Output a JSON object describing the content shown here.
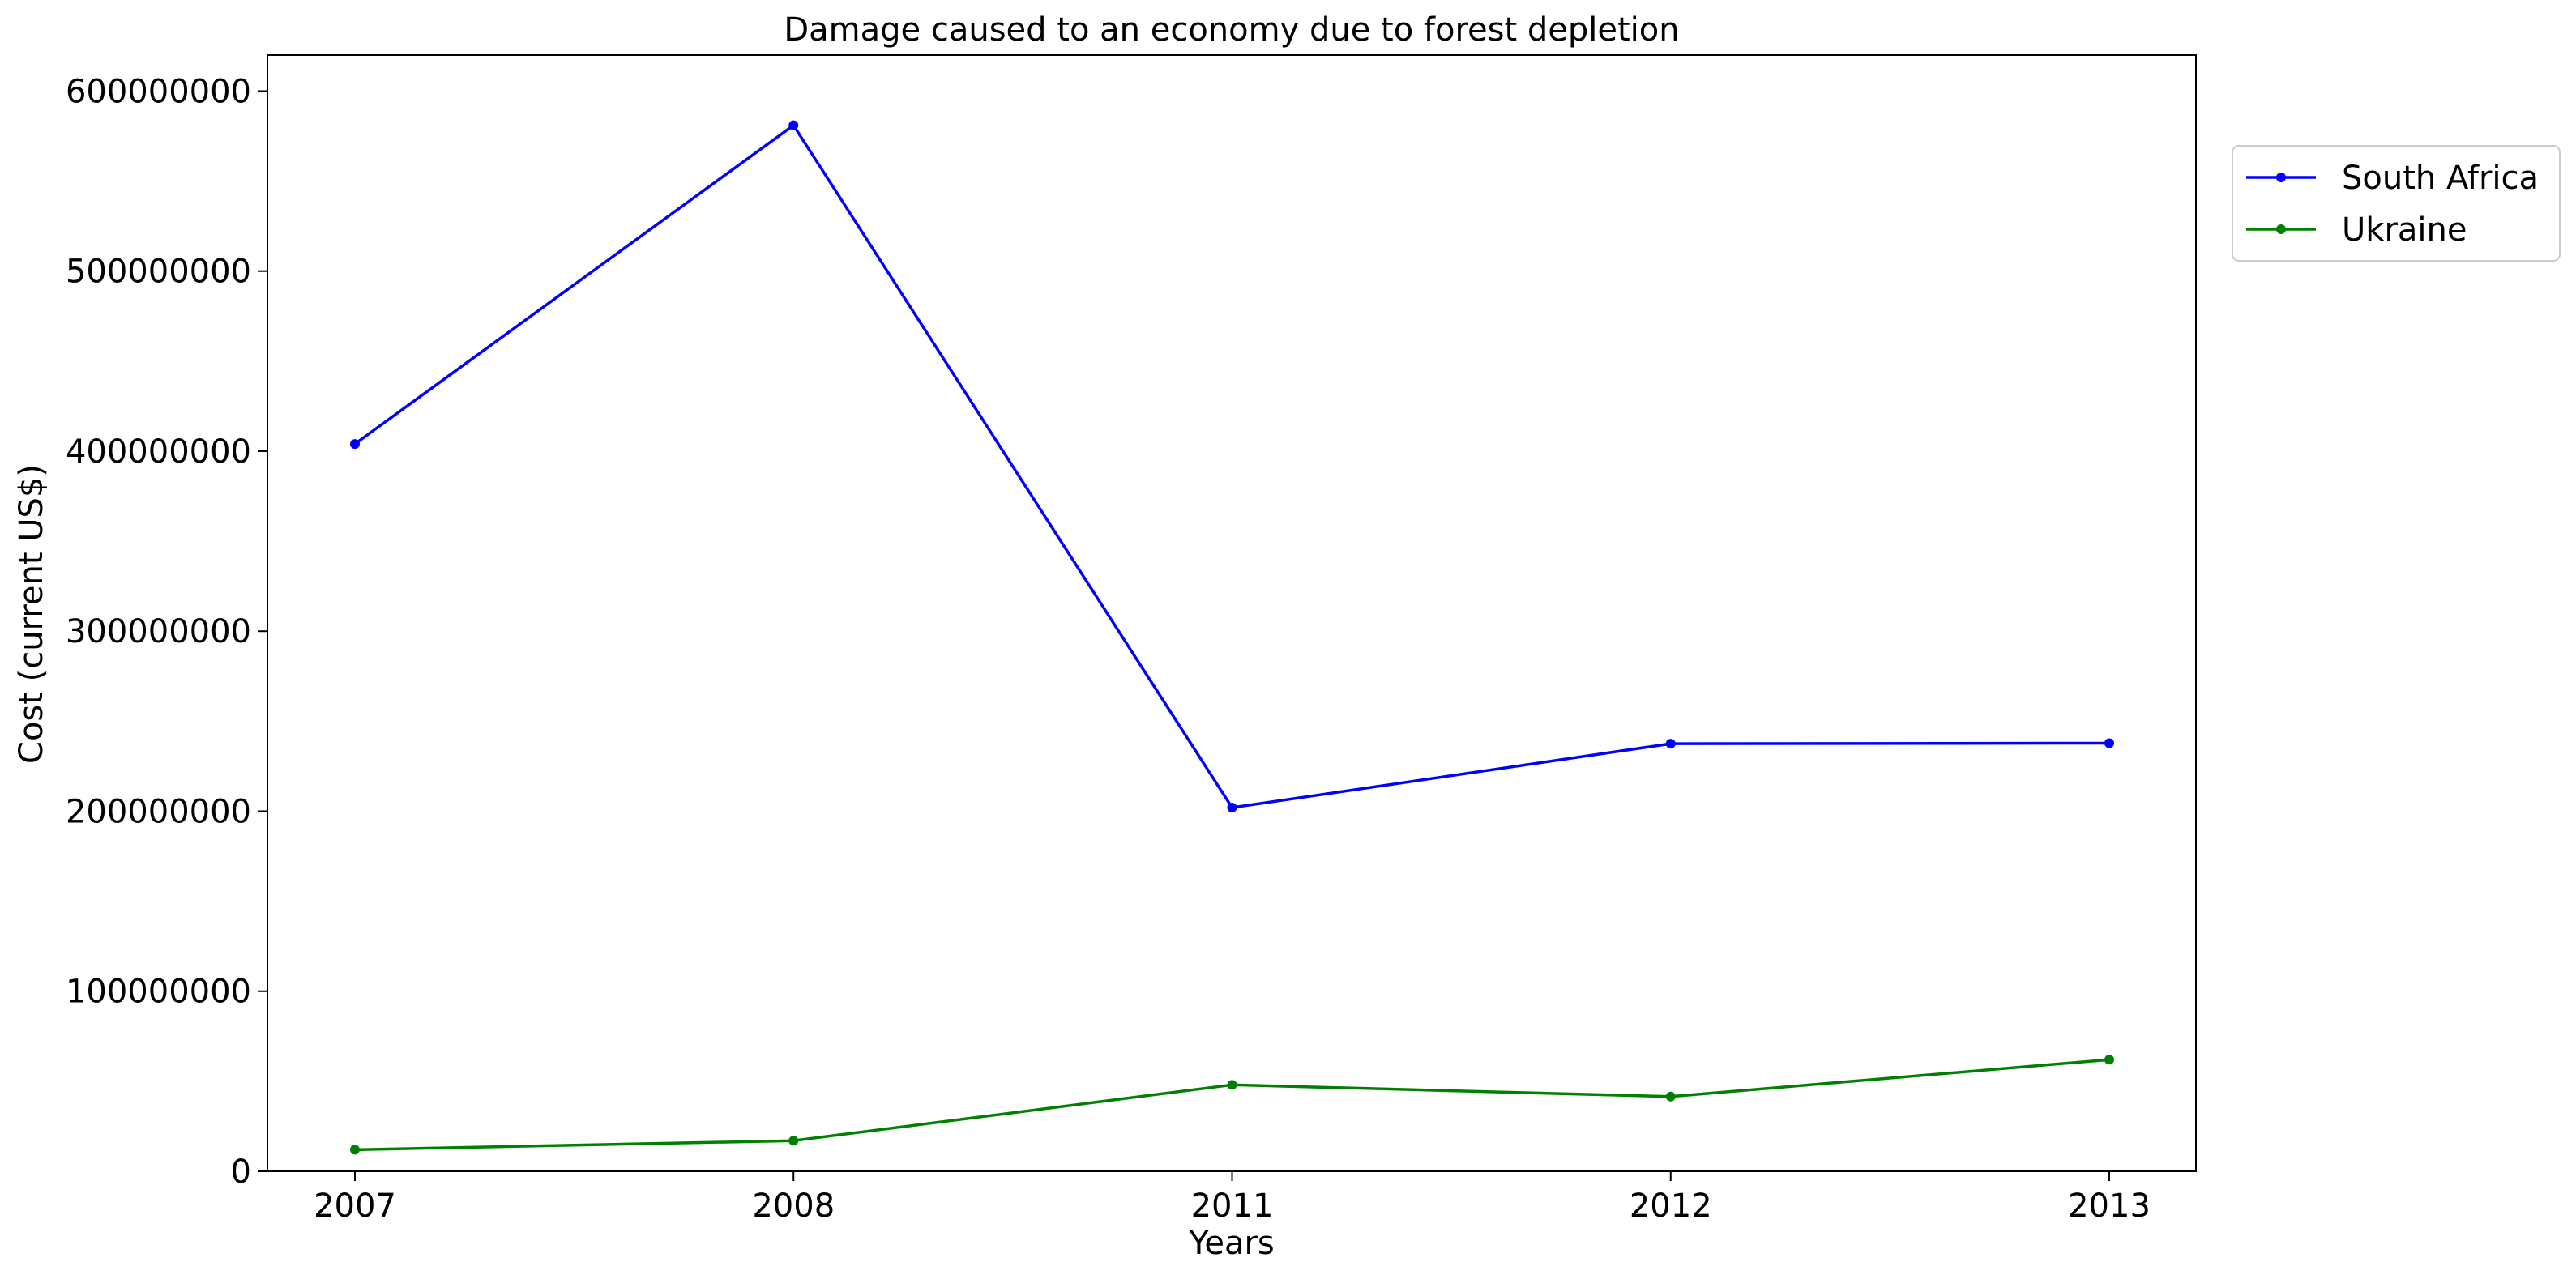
{
  "chart_data": {
    "type": "line",
    "title": "Damage caused to an economy due to forest depletion",
    "xlabel": "Years",
    "ylabel": "Cost (current US$)",
    "categories": [
      "2007",
      "2008",
      "2011",
      "2012",
      "2013"
    ],
    "ylim": [
      0,
      620000000
    ],
    "yticks": [
      0,
      100000000,
      200000000,
      300000000,
      400000000,
      500000000,
      600000000
    ],
    "grid": false,
    "legend_position": "top-right outside",
    "series": [
      {
        "name": "South Africa",
        "color": "#0000ff",
        "values": [
          404000000,
          581000000,
          202000000,
          237500000,
          237800000
        ]
      },
      {
        "name": "Ukraine",
        "color": "#008000",
        "values": [
          12000000,
          17000000,
          48000000,
          41500000,
          62000000
        ]
      }
    ]
  }
}
